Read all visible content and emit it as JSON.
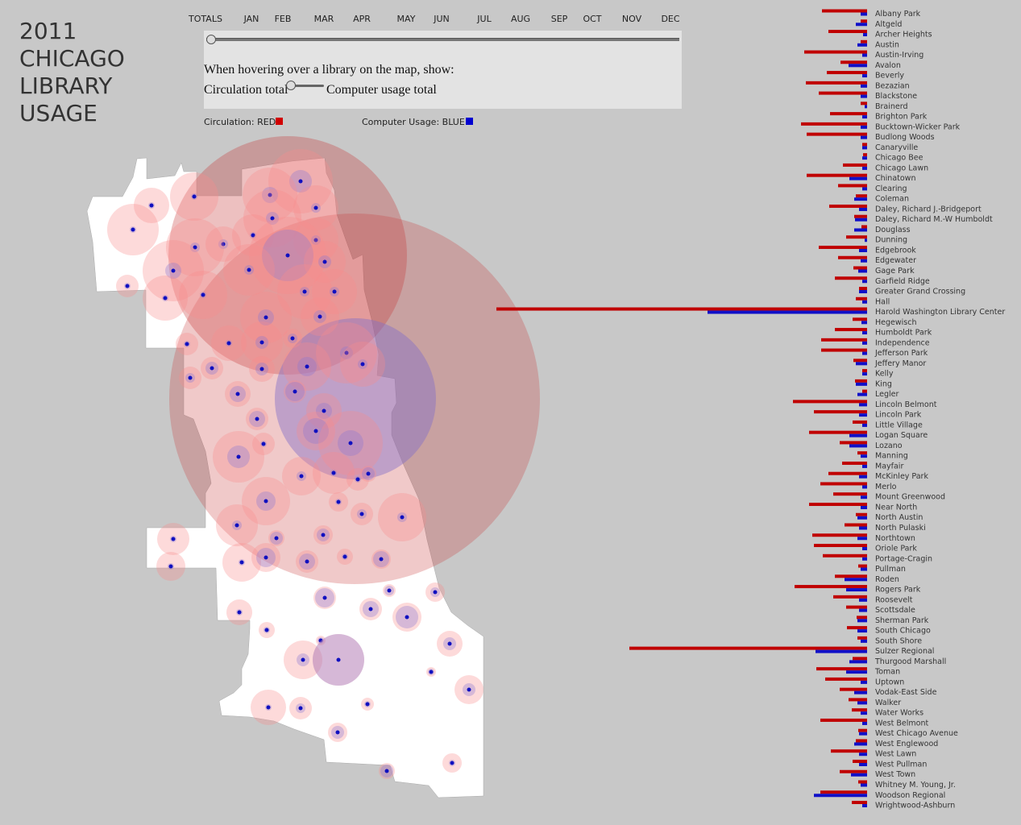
{
  "title_lines": [
    "2011",
    "CHICAGO",
    "LIBRARY",
    "USAGE"
  ],
  "months": [
    "TOTALS",
    "JAN",
    "FEB",
    "MAR",
    "APR",
    "MAY",
    "JUN",
    "JUL",
    "AUG",
    "SEP",
    "OCT",
    "NOV",
    "DEC"
  ],
  "controls": {
    "hover_prompt": "When hovering over a library on the map, show:",
    "option_left": "Circulation total",
    "option_right": "Computer usage total",
    "timeline_value": "TOTALS"
  },
  "legend": {
    "circulation_label": "Circulation: RED",
    "computer_label": "Computer Usage: BLUE",
    "circulation_color": "#d10000",
    "computer_color": "#0000d0"
  },
  "chart_data": {
    "type": "bar",
    "orientation": "horizontal",
    "categories": [
      "Albany Park",
      "Altgeld",
      "Archer Heights",
      "Austin",
      "Austin-Irving",
      "Avalon",
      "Beverly",
      "Bezazian",
      "Blackstone",
      "Brainerd",
      "Brighton Park",
      "Bucktown-Wicker Park",
      "Budlong Woods",
      "Canaryville",
      "Chicago Bee",
      "Chicago Lawn",
      "Chinatown",
      "Clearing",
      "Coleman",
      "Daley, Richard J.-Bridgeport",
      "Daley, Richard M.-W Humboldt",
      "Douglass",
      "Dunning",
      "Edgebrook",
      "Edgewater",
      "Gage Park",
      "Garfield Ridge",
      "Greater Grand Crossing",
      "Hall",
      "Harold Washington Library Center",
      "Hegewisch",
      "Humboldt Park",
      "Independence",
      "Jefferson Park",
      "Jeffery Manor",
      "Kelly",
      "King",
      "Legler",
      "Lincoln Belmont",
      "Lincoln Park",
      "Little Village",
      "Logan Square",
      "Lozano",
      "Manning",
      "Mayfair",
      "McKinley Park",
      "Merlo",
      "Mount Greenwood",
      "Near North",
      "North Austin",
      "North Pulaski",
      "Northtown",
      "Oriole Park",
      "Portage-Cragin",
      "Pullman",
      "Roden",
      "Rogers Park",
      "Roosevelt",
      "Scottsdale",
      "Sherman Park",
      "South Chicago",
      "South Shore",
      "Sulzer Regional",
      "Thurgood Marshall",
      "Toman",
      "Uptown",
      "Vodak-East Side",
      "Walker",
      "Water Works",
      "West Belmont",
      "West Chicago Avenue",
      "West Englewood",
      "West Lawn",
      "West Pullman",
      "West Town",
      "Whitney M. Young, Jr.",
      "Woodson Regional",
      "Wrightwood-Ashburn"
    ],
    "series": [
      {
        "name": "Circulation",
        "color": "#c00000",
        "values": [
          56,
          8,
          48,
          8,
          78,
          33,
          50,
          76,
          60,
          8,
          46,
          82,
          75,
          6,
          5,
          30,
          75,
          36,
          14,
          47,
          16,
          7,
          26,
          60,
          36,
          17,
          40,
          10,
          14,
          460,
          18,
          40,
          57,
          57,
          17,
          6,
          15,
          6,
          92,
          66,
          18,
          72,
          34,
          12,
          31,
          48,
          58,
          42,
          72,
          14,
          28,
          68,
          66,
          55,
          11,
          40,
          90,
          42,
          26,
          13,
          25,
          12,
          295,
          18,
          63,
          52,
          34,
          23,
          19,
          58,
          11,
          14,
          45,
          18,
          34,
          11,
          58,
          19
        ]
      },
      {
        "name": "Computer Usage",
        "color": "#1010c8",
        "values": [
          8,
          14,
          5,
          12,
          6,
          23,
          6,
          8,
          8,
          3,
          6,
          8,
          8,
          6,
          6,
          6,
          22,
          6,
          16,
          10,
          15,
          16,
          3,
          10,
          8,
          11,
          6,
          10,
          6,
          198,
          7,
          6,
          6,
          6,
          14,
          6,
          14,
          12,
          10,
          10,
          6,
          22,
          22,
          8,
          6,
          10,
          6,
          8,
          8,
          12,
          10,
          12,
          6,
          6,
          8,
          28,
          26,
          10,
          10,
          12,
          12,
          8,
          64,
          22,
          26,
          8,
          16,
          12,
          8,
          6,
          10,
          16,
          10,
          10,
          20,
          8,
          66,
          6
        ]
      }
    ]
  }
}
